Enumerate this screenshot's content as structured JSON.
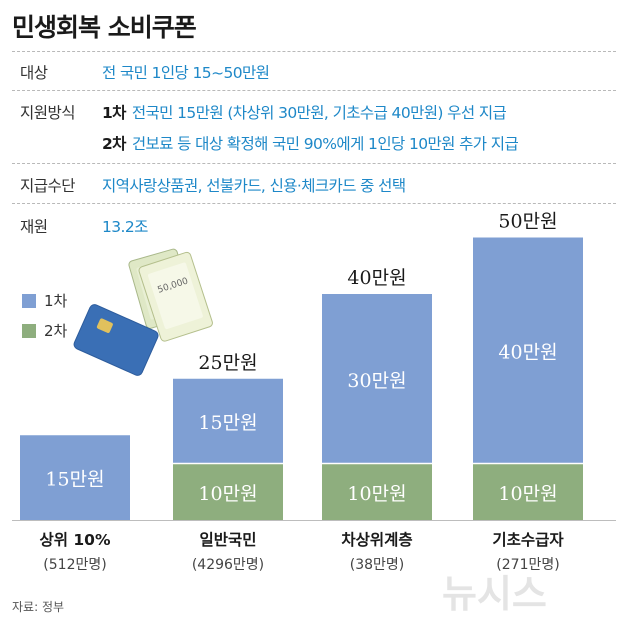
{
  "title": "민생회복 소비쿠폰",
  "info": {
    "target_label": "대상",
    "target_value": "전 국민 1인당 15~50만원",
    "method_label": "지원방식",
    "method_step1_tag": "1차",
    "method_step1_text": "전국민 15만원 (차상위 30만원, 기초수급 40만원) 우선 지급",
    "method_step2_tag": "2차",
    "method_step2_text": "건보료 등 대상 확정해 국민 90%에게 1인당 10만원 추가 지급",
    "means_label": "지급수단",
    "means_value": "지역사랑상품권, 선불카드, 신용·체크카드 중 선택",
    "budget_label": "재원",
    "budget_value": "13.2조"
  },
  "chart_data": {
    "type": "bar",
    "stacked": true,
    "categories": [
      "상위 10%",
      "일반국민",
      "차상위계층",
      "기초수급자"
    ],
    "category_counts": [
      "(512만명)",
      "(4296만명)",
      "(38만명)",
      "(271만명)"
    ],
    "series": [
      {
        "name": "1차",
        "values": [
          15,
          15,
          30,
          40
        ],
        "labels": [
          "15만원",
          "15만원",
          "30만원",
          "40만원"
        ],
        "color": "#7f9fd3"
      },
      {
        "name": "2차",
        "values": [
          0,
          10,
          10,
          10
        ],
        "labels": [
          "",
          "10만원",
          "10만원",
          "10만원"
        ],
        "color": "#8eae7e"
      }
    ],
    "totals": [
      "",
      "25만원",
      "40만원",
      "50만원"
    ],
    "unit": "만원",
    "ylim": [
      0,
      50
    ],
    "legend_position": "left",
    "grid": false
  },
  "colors": {
    "accent_text": "#1e88c8",
    "bar_first": "#7f9fd3",
    "bar_second": "#8eae7e"
  },
  "source": "자료: 정부",
  "watermark": "뉴시스"
}
